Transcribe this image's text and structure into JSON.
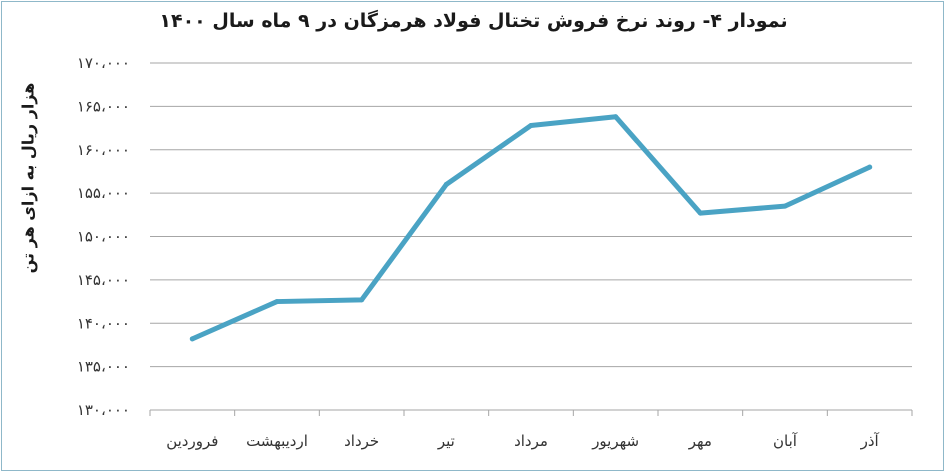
{
  "chart_data": {
    "type": "line",
    "title": "نمودار ۴- روند نرخ فروش تختال فولاد هرمزگان در ۹ ماه سال ۱۴۰۰",
    "ylabel": "هزار ریال به ازای هر تن",
    "xlabel": "",
    "categories": [
      "فروردین",
      "اردیبهشت",
      "خرداد",
      "تیر",
      "مرداد",
      "شهریور",
      "مهر",
      "آبان",
      "آذر"
    ],
    "values": [
      138200,
      142500,
      142700,
      156000,
      162800,
      163800,
      152700,
      153500,
      158000
    ],
    "ylim": [
      130000,
      170000
    ],
    "yticks": [
      130000,
      135000,
      140000,
      145000,
      150000,
      155000,
      160000,
      165000,
      170000
    ],
    "ytick_labels": [
      "۱۳۰،۰۰۰",
      "۱۳۵،۰۰۰",
      "۱۴۰،۰۰۰",
      "۱۴۵،۰۰۰",
      "۱۵۰،۰۰۰",
      "۱۵۵،۰۰۰",
      "۱۶۰،۰۰۰",
      "۱۶۵،۰۰۰",
      "۱۷۰،۰۰۰"
    ],
    "grid": true,
    "line_color": "#4aa3c4"
  }
}
